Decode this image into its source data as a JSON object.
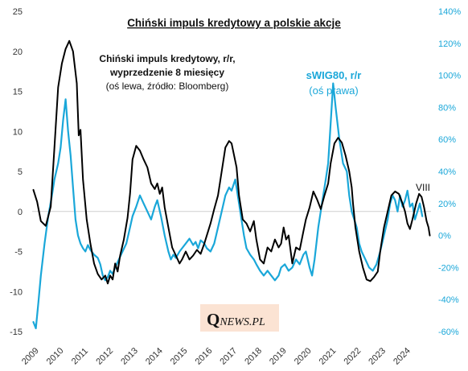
{
  "chart_data": {
    "type": "line",
    "title": "Chiński impuls kredytowy a polskie akcje",
    "x_tick_labels": [
      "2009",
      "2010",
      "2011",
      "2012",
      "2013",
      "2014",
      "2015",
      "2016",
      "2017",
      "2018",
      "2019",
      "2020",
      "2021",
      "2022",
      "2023",
      "2024"
    ],
    "xlim": [
      2009.0,
      2025.1
    ],
    "y_left": {
      "lim": [
        -15,
        25
      ],
      "ticks": [
        -15,
        -10,
        -5,
        0,
        5,
        10,
        15,
        20,
        25
      ],
      "tick_labels": [
        "-15",
        "-10",
        "-5",
        "0",
        "5",
        "10",
        "15",
        "20",
        "25"
      ]
    },
    "y_right": {
      "lim": [
        -60,
        140
      ],
      "ticks": [
        -60,
        -40,
        -20,
        0,
        20,
        40,
        60,
        80,
        100,
        120,
        140
      ],
      "tick_labels": [
        "-60%",
        "-40%",
        "-20%",
        "0%",
        "20%",
        "40%",
        "60%",
        "80%",
        "100%",
        "120%",
        "140%"
      ]
    },
    "grid": false,
    "series": [
      {
        "name": "Chiński impuls kredytowy, r/r, wyprzedzenie 8 miesięcy",
        "axis": "left",
        "color": "#000000",
        "points": [
          [
            2009.05,
            2.7
          ],
          [
            2009.2,
            1.2
          ],
          [
            2009.35,
            -1.2
          ],
          [
            2009.55,
            -1.8
          ],
          [
            2009.75,
            0.6
          ],
          [
            2009.9,
            8.0
          ],
          [
            2010.05,
            15.5
          ],
          [
            2010.2,
            18.5
          ],
          [
            2010.35,
            20.3
          ],
          [
            2010.5,
            21.3
          ],
          [
            2010.65,
            20.0
          ],
          [
            2010.8,
            16.0
          ],
          [
            2010.88,
            9.5
          ],
          [
            2010.95,
            10.2
          ],
          [
            2011.05,
            4.0
          ],
          [
            2011.2,
            -1.0
          ],
          [
            2011.35,
            -4.0
          ],
          [
            2011.5,
            -6.5
          ],
          [
            2011.65,
            -7.8
          ],
          [
            2011.8,
            -8.5
          ],
          [
            2011.95,
            -8.0
          ],
          [
            2012.05,
            -9.0
          ],
          [
            2012.15,
            -8.0
          ],
          [
            2012.25,
            -8.5
          ],
          [
            2012.35,
            -6.5
          ],
          [
            2012.45,
            -7.5
          ],
          [
            2012.55,
            -5.5
          ],
          [
            2012.7,
            -3.5
          ],
          [
            2012.85,
            -0.8
          ],
          [
            2012.95,
            2.2
          ],
          [
            2013.05,
            6.5
          ],
          [
            2013.2,
            8.2
          ],
          [
            2013.35,
            7.6
          ],
          [
            2013.5,
            6.5
          ],
          [
            2013.65,
            5.5
          ],
          [
            2013.8,
            3.5
          ],
          [
            2013.95,
            2.8
          ],
          [
            2014.05,
            3.5
          ],
          [
            2014.15,
            2.2
          ],
          [
            2014.25,
            3.0
          ],
          [
            2014.35,
            0.5
          ],
          [
            2014.5,
            -2.0
          ],
          [
            2014.65,
            -4.5
          ],
          [
            2014.8,
            -5.5
          ],
          [
            2014.95,
            -6.5
          ],
          [
            2015.05,
            -6.0
          ],
          [
            2015.2,
            -5.0
          ],
          [
            2015.35,
            -6.0
          ],
          [
            2015.5,
            -5.5
          ],
          [
            2015.65,
            -4.8
          ],
          [
            2015.8,
            -5.3
          ],
          [
            2015.95,
            -4.0
          ],
          [
            2016.05,
            -3.0
          ],
          [
            2016.2,
            -1.5
          ],
          [
            2016.35,
            0.3
          ],
          [
            2016.5,
            2.0
          ],
          [
            2016.65,
            5.0
          ],
          [
            2016.8,
            8.0
          ],
          [
            2016.95,
            8.8
          ],
          [
            2017.05,
            8.5
          ],
          [
            2017.15,
            7.0
          ],
          [
            2017.25,
            5.5
          ],
          [
            2017.35,
            2.0
          ],
          [
            2017.5,
            -1.0
          ],
          [
            2017.65,
            -1.5
          ],
          [
            2017.8,
            -2.5
          ],
          [
            2017.95,
            -1.2
          ],
          [
            2018.05,
            -3.5
          ],
          [
            2018.2,
            -6.0
          ],
          [
            2018.35,
            -6.5
          ],
          [
            2018.5,
            -4.5
          ],
          [
            2018.65,
            -5.0
          ],
          [
            2018.8,
            -3.5
          ],
          [
            2018.95,
            -4.5
          ],
          [
            2019.05,
            -4.0
          ],
          [
            2019.15,
            -2.0
          ],
          [
            2019.25,
            -3.5
          ],
          [
            2019.35,
            -3.0
          ],
          [
            2019.5,
            -6.5
          ],
          [
            2019.65,
            -4.5
          ],
          [
            2019.8,
            -4.8
          ],
          [
            2019.95,
            -2.5
          ],
          [
            2020.05,
            -1.0
          ],
          [
            2020.2,
            0.5
          ],
          [
            2020.35,
            2.5
          ],
          [
            2020.5,
            1.5
          ],
          [
            2020.65,
            0.3
          ],
          [
            2020.8,
            2.0
          ],
          [
            2020.95,
            3.5
          ],
          [
            2021.05,
            6.0
          ],
          [
            2021.2,
            8.5
          ],
          [
            2021.35,
            9.2
          ],
          [
            2021.5,
            8.6
          ],
          [
            2021.65,
            7.0
          ],
          [
            2021.8,
            5.0
          ],
          [
            2021.9,
            3.0
          ],
          [
            2021.95,
            1.0
          ],
          [
            2022.05,
            -2.0
          ],
          [
            2022.2,
            -5.0
          ],
          [
            2022.35,
            -7.0
          ],
          [
            2022.5,
            -8.5
          ],
          [
            2022.65,
            -8.7
          ],
          [
            2022.8,
            -8.2
          ],
          [
            2022.95,
            -7.5
          ],
          [
            2023.05,
            -5.0
          ],
          [
            2023.2,
            -2.0
          ],
          [
            2023.35,
            0.0
          ],
          [
            2023.5,
            2.0
          ],
          [
            2023.65,
            2.5
          ],
          [
            2023.8,
            2.2
          ],
          [
            2023.95,
            1.0
          ],
          [
            2024.05,
            0.0
          ],
          [
            2024.15,
            -1.5
          ],
          [
            2024.25,
            -2.2
          ],
          [
            2024.35,
            -1.0
          ],
          [
            2024.5,
            1.0
          ],
          [
            2024.62,
            2.2
          ],
          [
            2024.72,
            1.8
          ],
          [
            2024.82,
            0.5
          ],
          [
            2024.92,
            -1.2
          ],
          [
            2025.0,
            -2.0
          ],
          [
            2025.05,
            -3.0
          ]
        ]
      },
      {
        "name": "sWIG80, r/r",
        "axis": "right",
        "color": "#1aa7d9",
        "points": [
          [
            2009.05,
            -54
          ],
          [
            2009.15,
            -58
          ],
          [
            2009.25,
            -42
          ],
          [
            2009.35,
            -25
          ],
          [
            2009.5,
            -5
          ],
          [
            2009.65,
            12
          ],
          [
            2009.8,
            25
          ],
          [
            2009.9,
            35
          ],
          [
            2010.05,
            45
          ],
          [
            2010.15,
            55
          ],
          [
            2010.25,
            72
          ],
          [
            2010.35,
            85
          ],
          [
            2010.45,
            65
          ],
          [
            2010.55,
            50
          ],
          [
            2010.65,
            30
          ],
          [
            2010.75,
            10
          ],
          [
            2010.85,
            0
          ],
          [
            2010.95,
            -5
          ],
          [
            2011.05,
            -8
          ],
          [
            2011.15,
            -10
          ],
          [
            2011.25,
            -6
          ],
          [
            2011.35,
            -9
          ],
          [
            2011.5,
            -12
          ],
          [
            2011.65,
            -14
          ],
          [
            2011.75,
            -18
          ],
          [
            2011.85,
            -25
          ],
          [
            2011.95,
            -28
          ],
          [
            2012.05,
            -26
          ],
          [
            2012.15,
            -22
          ],
          [
            2012.25,
            -24
          ],
          [
            2012.35,
            -20
          ],
          [
            2012.5,
            -15
          ],
          [
            2012.65,
            -10
          ],
          [
            2012.8,
            -5
          ],
          [
            2012.95,
            5
          ],
          [
            2013.05,
            12
          ],
          [
            2013.2,
            18
          ],
          [
            2013.35,
            25
          ],
          [
            2013.5,
            20
          ],
          [
            2013.65,
            15
          ],
          [
            2013.8,
            10
          ],
          [
            2013.95,
            18
          ],
          [
            2014.05,
            22
          ],
          [
            2014.2,
            12
          ],
          [
            2014.35,
            0
          ],
          [
            2014.5,
            -10
          ],
          [
            2014.6,
            -15
          ],
          [
            2014.7,
            -12
          ],
          [
            2014.8,
            -14
          ],
          [
            2014.95,
            -10
          ],
          [
            2015.05,
            -8
          ],
          [
            2015.2,
            -5
          ],
          [
            2015.35,
            -2
          ],
          [
            2015.5,
            -6
          ],
          [
            2015.6,
            -4
          ],
          [
            2015.7,
            -8
          ],
          [
            2015.8,
            -3
          ],
          [
            2015.95,
            -5
          ],
          [
            2016.05,
            -8
          ],
          [
            2016.2,
            -10
          ],
          [
            2016.35,
            -5
          ],
          [
            2016.5,
            5
          ],
          [
            2016.65,
            15
          ],
          [
            2016.8,
            25
          ],
          [
            2016.95,
            30
          ],
          [
            2017.05,
            28
          ],
          [
            2017.2,
            35
          ],
          [
            2017.3,
            25
          ],
          [
            2017.45,
            10
          ],
          [
            2017.55,
            0
          ],
          [
            2017.65,
            -8
          ],
          [
            2017.8,
            -12
          ],
          [
            2017.95,
            -15
          ],
          [
            2018.05,
            -18
          ],
          [
            2018.2,
            -22
          ],
          [
            2018.35,
            -25
          ],
          [
            2018.5,
            -22
          ],
          [
            2018.65,
            -25
          ],
          [
            2018.8,
            -28
          ],
          [
            2018.95,
            -25
          ],
          [
            2019.05,
            -20
          ],
          [
            2019.2,
            -18
          ],
          [
            2019.35,
            -22
          ],
          [
            2019.5,
            -20
          ],
          [
            2019.65,
            -15
          ],
          [
            2019.8,
            -18
          ],
          [
            2019.95,
            -12
          ],
          [
            2020.05,
            -10
          ],
          [
            2020.2,
            -20
          ],
          [
            2020.3,
            -25
          ],
          [
            2020.4,
            -15
          ],
          [
            2020.55,
            5
          ],
          [
            2020.7,
            20
          ],
          [
            2020.85,
            35
          ],
          [
            2020.95,
            45
          ],
          [
            2021.05,
            70
          ],
          [
            2021.15,
            95
          ],
          [
            2021.25,
            80
          ],
          [
            2021.4,
            60
          ],
          [
            2021.55,
            45
          ],
          [
            2021.7,
            40
          ],
          [
            2021.8,
            25
          ],
          [
            2021.9,
            15
          ],
          [
            2022.0,
            10
          ],
          [
            2022.1,
            5
          ],
          [
            2022.2,
            -5
          ],
          [
            2022.3,
            -10
          ],
          [
            2022.45,
            -15
          ],
          [
            2022.6,
            -20
          ],
          [
            2022.75,
            -22
          ],
          [
            2022.9,
            -18
          ],
          [
            2023.05,
            -10
          ],
          [
            2023.2,
            0
          ],
          [
            2023.35,
            10
          ],
          [
            2023.45,
            20
          ],
          [
            2023.55,
            25
          ],
          [
            2023.65,
            22
          ],
          [
            2023.75,
            15
          ],
          [
            2023.85,
            25
          ],
          [
            2023.95,
            18
          ],
          [
            2024.05,
            22
          ],
          [
            2024.15,
            28
          ],
          [
            2024.25,
            18
          ],
          [
            2024.35,
            20
          ],
          [
            2024.45,
            10
          ],
          [
            2024.55,
            15
          ],
          [
            2024.65,
            20
          ],
          [
            2024.75,
            12
          ]
        ]
      }
    ],
    "annotations": {
      "left_series_label": [
        "Chiński impuls kredytowy, r/r,",
        "wyprzedzenie 8 miesięcy",
        "(oś lewa, źródło: Bloomberg)"
      ],
      "right_series_label": [
        "sWIG80, r/r",
        "(oś prawa)"
      ],
      "month_label": "VIII"
    }
  },
  "logo": {
    "q": "Q",
    "rest": "NEWS.PL"
  }
}
